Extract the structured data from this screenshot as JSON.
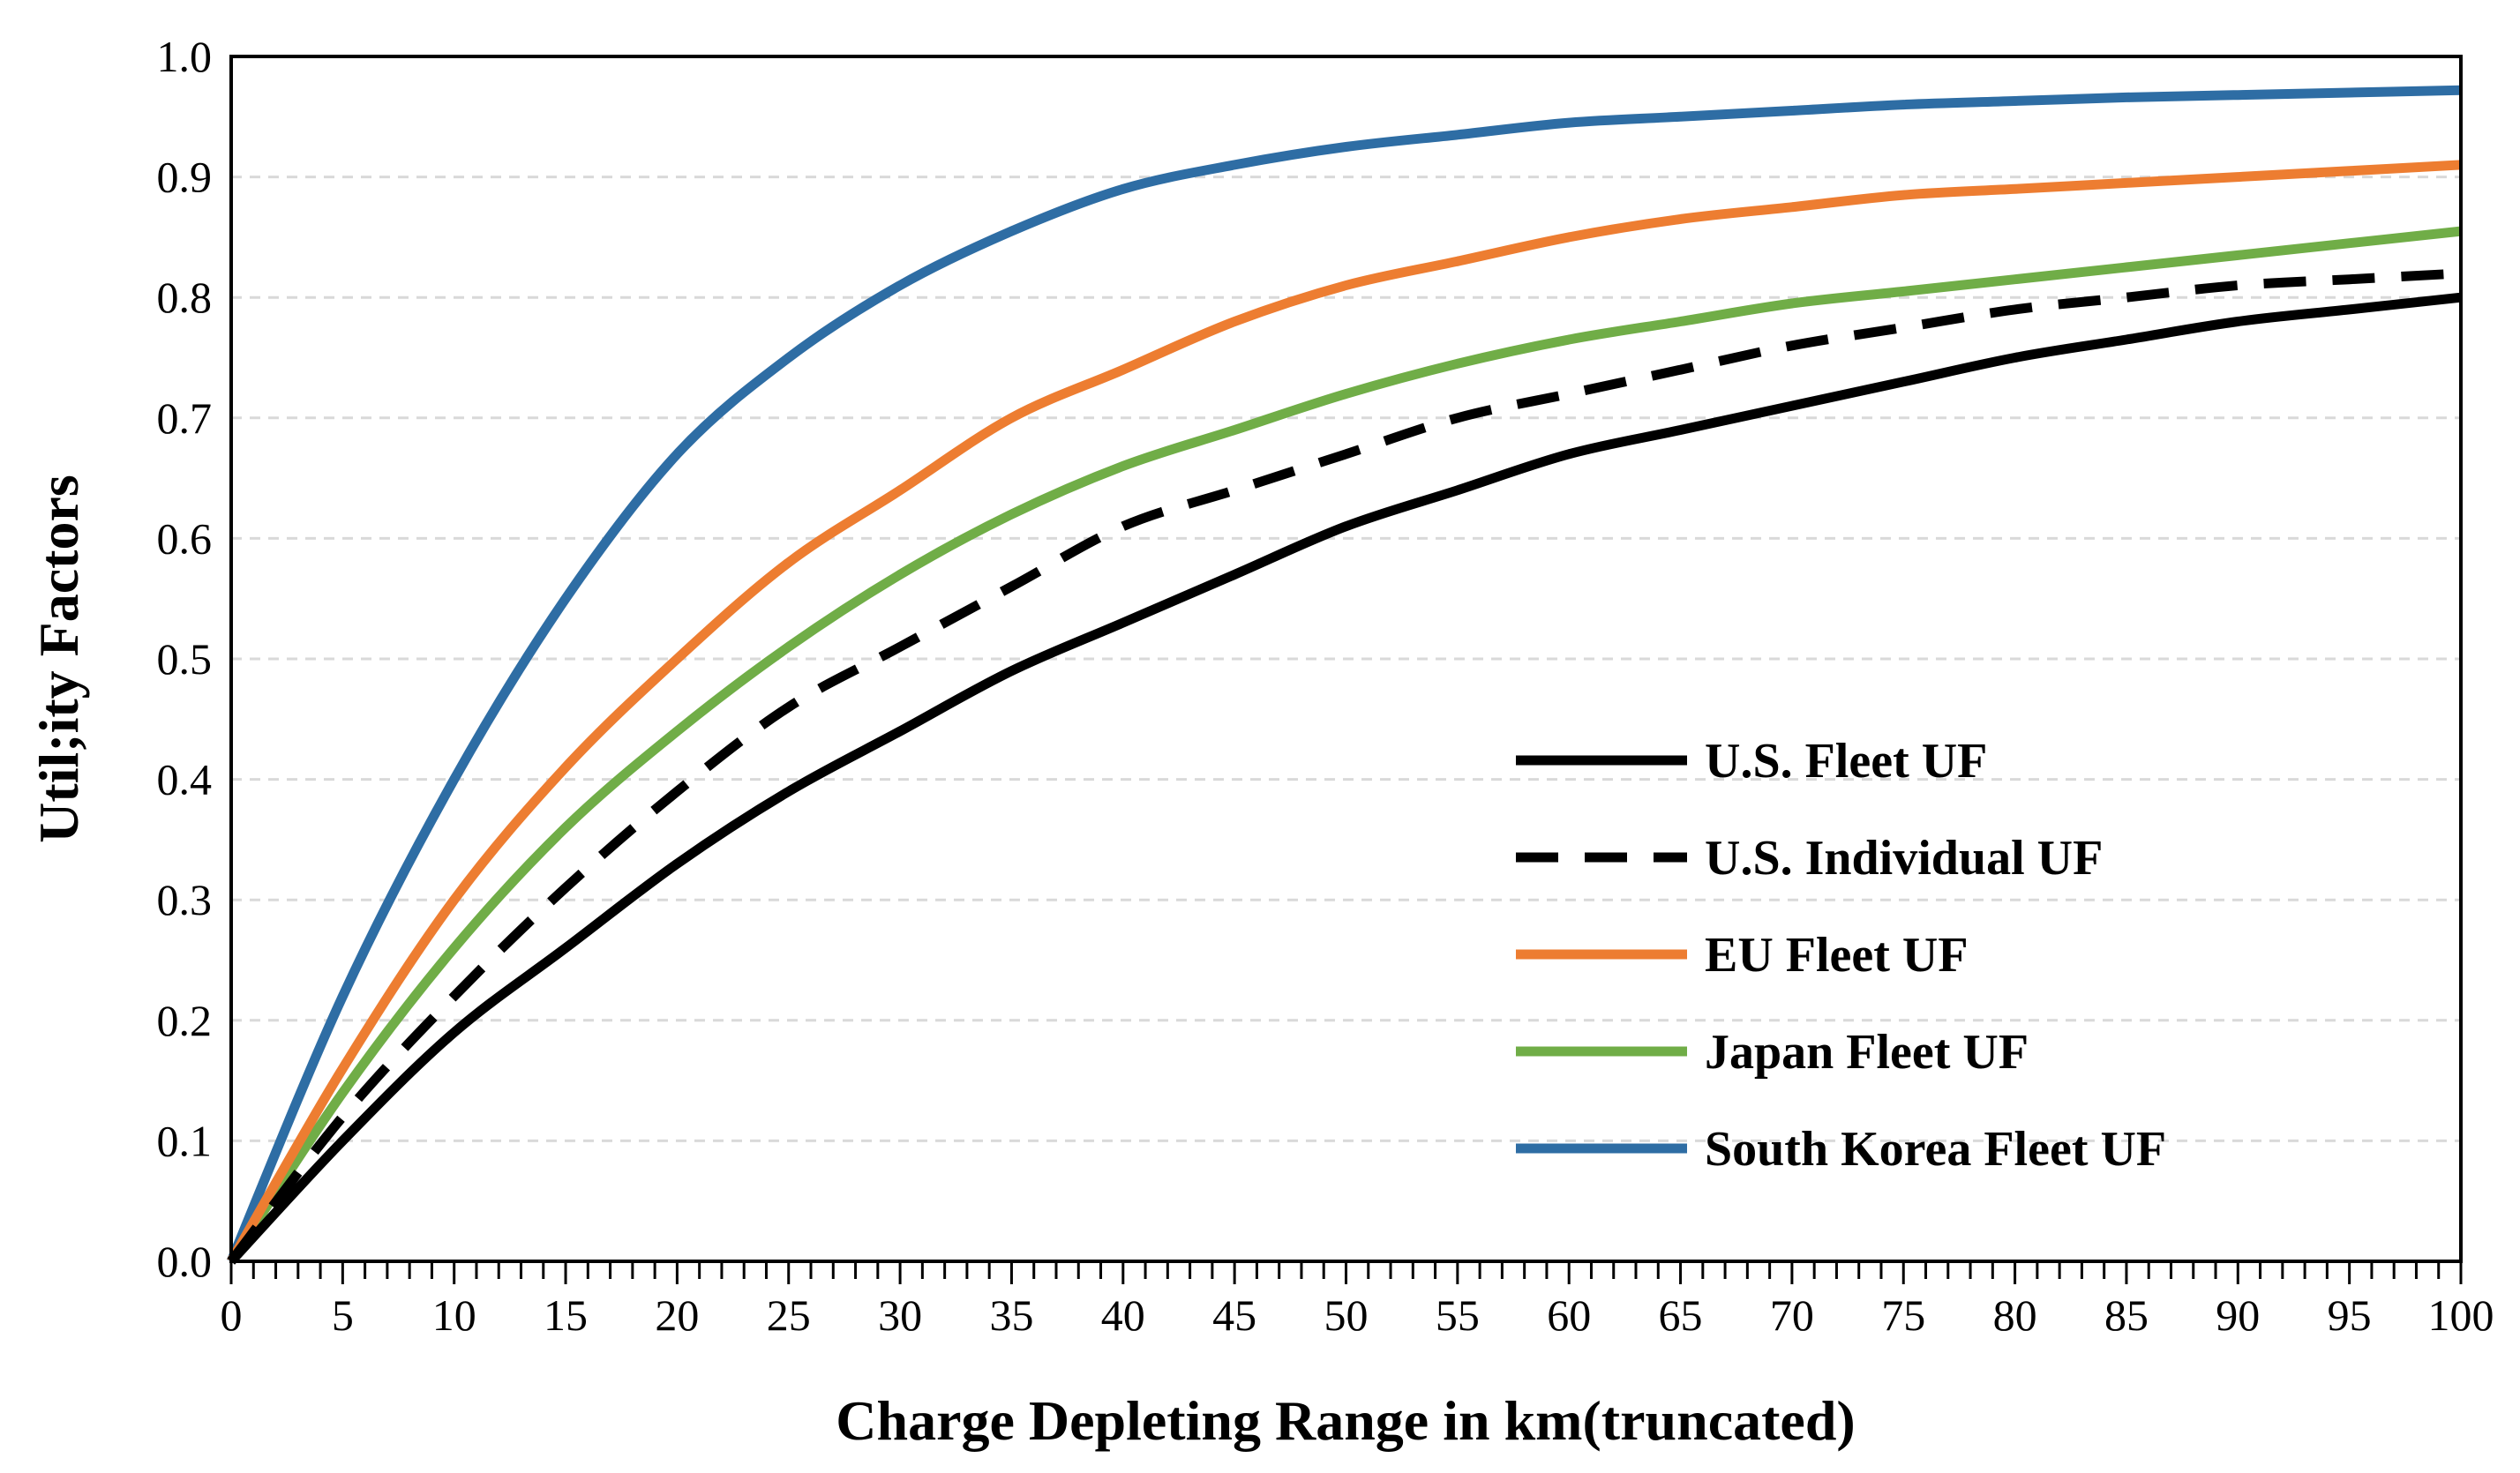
{
  "chart_data": {
    "type": "line",
    "title": "",
    "xlabel": "Charge Depleting Range in km(truncated)",
    "ylabel": "Util;ity Factors",
    "xlim": [
      0,
      100
    ],
    "ylim": [
      0,
      1.0
    ],
    "x_major_ticks": [
      0,
      5,
      10,
      15,
      20,
      25,
      30,
      35,
      40,
      45,
      50,
      55,
      60,
      65,
      70,
      75,
      80,
      85,
      90,
      95,
      100
    ],
    "x_tick_labels": [
      "0",
      "5",
      "10",
      "15",
      "20",
      "25",
      "30",
      "35",
      "40",
      "45",
      "50",
      "55",
      "60",
      "65",
      "70",
      "75",
      "80",
      "85",
      "90",
      "95",
      "100"
    ],
    "x_minor_tick_step": 1,
    "y_ticks": [
      0,
      0.1,
      0.2,
      0.3,
      0.4,
      0.5,
      0.6,
      0.7,
      0.8,
      0.9,
      1.0
    ],
    "y_tick_labels": [
      "0.0",
      "0.1",
      "0.2",
      "0.3",
      "0.4",
      "0.5",
      "0.6",
      "0.7",
      "0.8",
      "0.9",
      "1.0"
    ],
    "grid": "horizontal dashed",
    "legend_position": "lower-right",
    "x": [
      0,
      5,
      10,
      15,
      20,
      25,
      30,
      35,
      40,
      45,
      50,
      55,
      60,
      65,
      70,
      75,
      80,
      85,
      90,
      95,
      100
    ],
    "series": [
      {
        "name": "U.S. Fleet UF",
        "color": "#000000",
        "dash": "solid",
        "values": [
          0,
          0.1,
          0.19,
          0.26,
          0.33,
          0.39,
          0.44,
          0.49,
          0.53,
          0.57,
          0.61,
          0.64,
          0.67,
          0.69,
          0.71,
          0.73,
          0.75,
          0.765,
          0.78,
          0.79,
          0.8
        ]
      },
      {
        "name": "U.S. Individual UF",
        "color": "#000000",
        "dash": "dashed",
        "values": [
          0,
          0.12,
          0.22,
          0.31,
          0.39,
          0.46,
          0.51,
          0.56,
          0.61,
          0.64,
          0.67,
          0.7,
          0.72,
          0.74,
          0.76,
          0.775,
          0.79,
          0.8,
          0.81,
          0.815,
          0.82
        ]
      },
      {
        "name": "EU Fleet UF",
        "color": "#ED7D31",
        "dash": "solid",
        "values": [
          0,
          0.16,
          0.3,
          0.41,
          0.5,
          0.58,
          0.64,
          0.7,
          0.74,
          0.78,
          0.81,
          0.83,
          0.85,
          0.865,
          0.875,
          0.885,
          0.89,
          0.895,
          0.9,
          0.905,
          0.91
        ]
      },
      {
        "name": "Japan Fleet UF",
        "color": "#70AD47",
        "dash": "solid",
        "values": [
          0,
          0.14,
          0.26,
          0.36,
          0.44,
          0.51,
          0.57,
          0.62,
          0.66,
          0.69,
          0.72,
          0.745,
          0.765,
          0.78,
          0.795,
          0.805,
          0.815,
          0.825,
          0.835,
          0.845,
          0.855
        ]
      },
      {
        "name": "South Korea Fleet UF",
        "color": "#2E6DA4",
        "dash": "solid",
        "values": [
          0,
          0.22,
          0.4,
          0.55,
          0.67,
          0.75,
          0.81,
          0.855,
          0.89,
          0.91,
          0.925,
          0.935,
          0.945,
          0.95,
          0.955,
          0.96,
          0.963,
          0.966,
          0.968,
          0.97,
          0.972
        ]
      }
    ]
  }
}
